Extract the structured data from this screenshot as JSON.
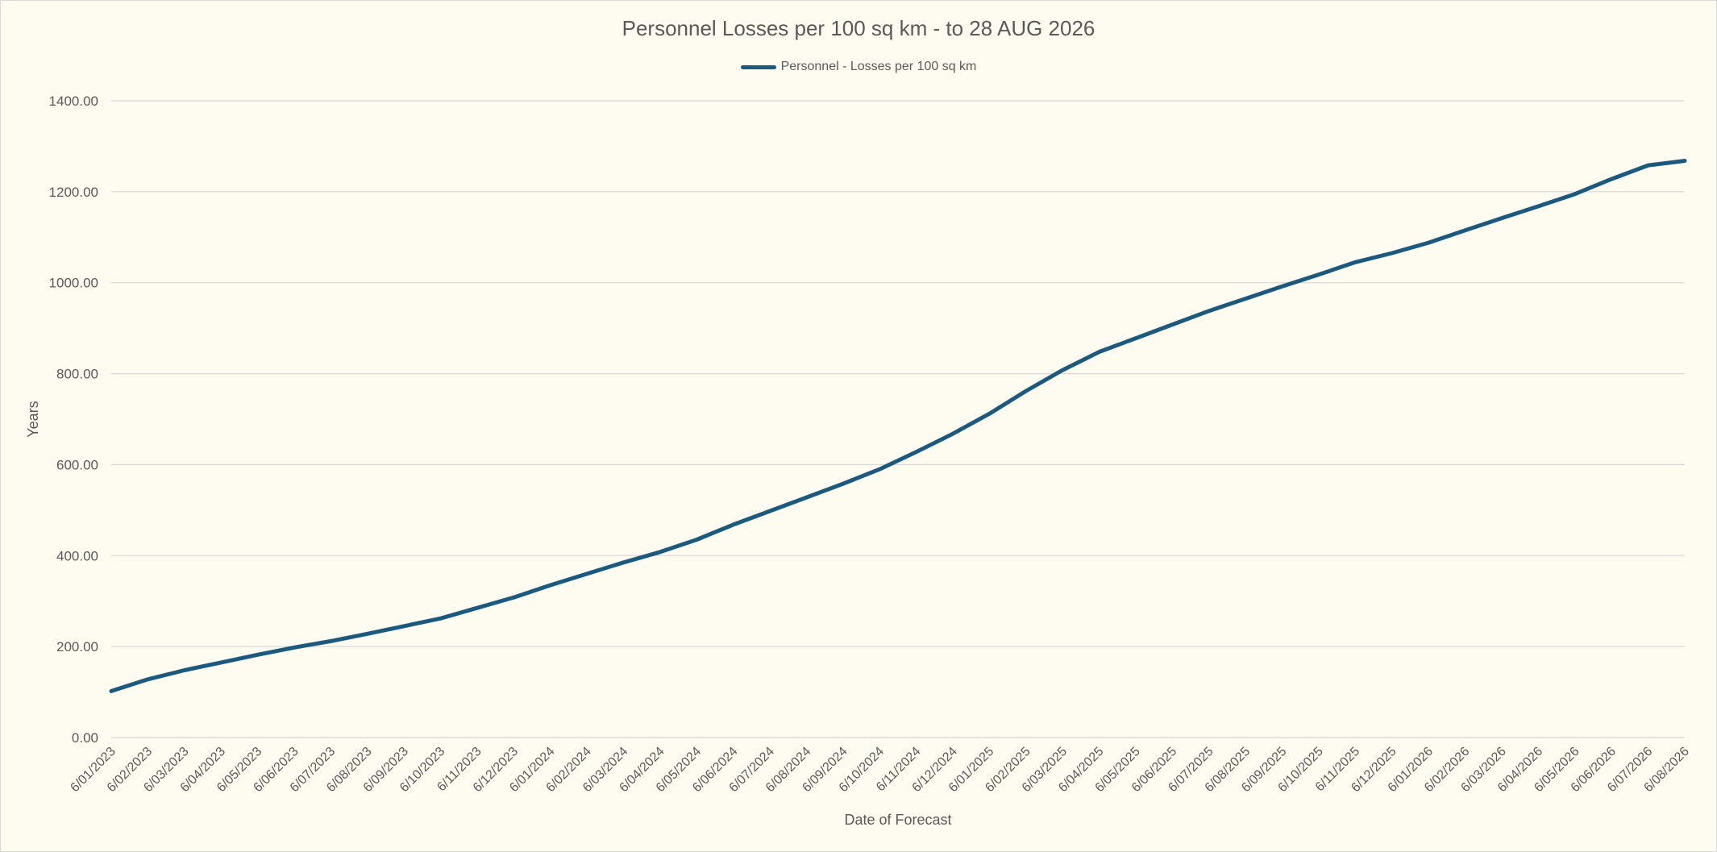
{
  "chart_data": {
    "type": "line",
    "title": "Personnel Losses per 100 sq km - to 28 AUG 2026",
    "xlabel": "Date of Forecast",
    "ylabel": "Years",
    "ylim": [
      0,
      1400
    ],
    "yticks": [
      "0.00",
      "200.00",
      "400.00",
      "600.00",
      "800.00",
      "1000.00",
      "1200.00",
      "1400.00"
    ],
    "grid": true,
    "legend": "top-center",
    "categories": [
      "6/01/2023",
      "6/02/2023",
      "6/03/2023",
      "6/04/2023",
      "6/05/2023",
      "6/06/2023",
      "6/07/2023",
      "6/08/2023",
      "6/09/2023",
      "6/10/2023",
      "6/11/2023",
      "6/12/2023",
      "6/01/2024",
      "6/02/2024",
      "6/03/2024",
      "6/04/2024",
      "6/05/2024",
      "6/06/2024",
      "6/07/2024",
      "6/08/2024",
      "6/09/2024",
      "6/10/2024",
      "6/11/2024",
      "6/12/2024",
      "6/01/2025",
      "6/02/2025",
      "6/03/2025",
      "6/04/2025",
      "6/05/2025",
      "6/06/2025",
      "6/07/2025",
      "6/08/2025",
      "6/09/2025",
      "6/10/2025",
      "6/11/2025",
      "6/12/2025",
      "6/01/2026",
      "6/02/2026",
      "6/03/2026",
      "6/04/2026",
      "6/05/2026",
      "6/06/2026",
      "6/07/2026",
      "6/08/2026"
    ],
    "series": [
      {
        "name": "Personnel - Losses per 100 sq km",
        "color": "#1b5a7e",
        "values": [
          102,
          128,
          148,
          165,
          182,
          198,
          212,
          228,
          245,
          262,
          285,
          308,
          335,
          360,
          385,
          408,
          435,
          468,
          498,
          528,
          558,
          590,
          628,
          668,
          712,
          762,
          808,
          848,
          878,
          908,
          938,
          965,
          992,
          1018,
          1045,
          1065,
          1088,
          1115,
          1142,
          1168,
          1195,
          1228,
          1258,
          1268
        ]
      }
    ]
  }
}
